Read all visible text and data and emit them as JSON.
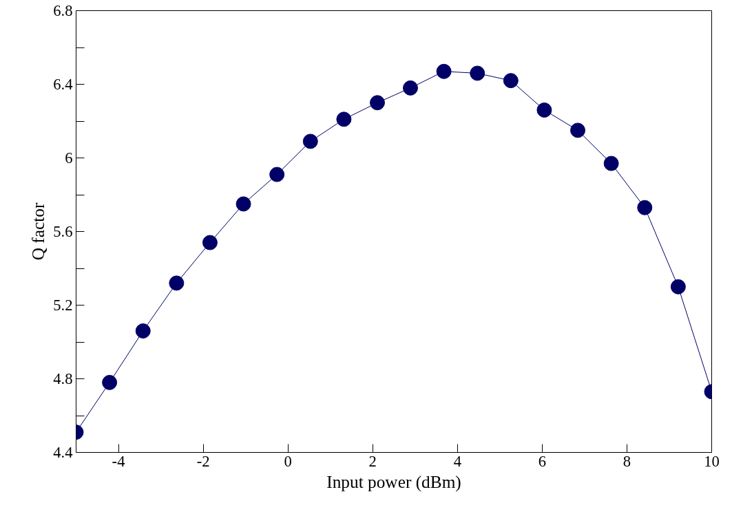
{
  "chart_data": {
    "type": "line",
    "xlabel": "Input power (dBm)",
    "ylabel": "Q factor",
    "x": [
      -5,
      -4.21,
      -3.42,
      -2.63,
      -1.84,
      -1.05,
      -0.26,
      0.53,
      1.32,
      2.11,
      2.89,
      3.68,
      4.47,
      5.26,
      6.05,
      6.84,
      7.63,
      8.42,
      9.21,
      10
    ],
    "series": [
      {
        "color": "#000066",
        "values": [
          4.51,
          4.78,
          5.06,
          5.32,
          5.54,
          5.75,
          5.91,
          6.09,
          6.21,
          6.3,
          6.38,
          6.47,
          6.46,
          6.42,
          6.26,
          6.15,
          5.97,
          5.73,
          5.3,
          4.73
        ]
      }
    ],
    "marker": "circle",
    "line_style": "solid",
    "grid": false,
    "xlim": [
      -5,
      10
    ],
    "xticks": [
      -4,
      -2,
      0,
      2,
      4,
      6,
      8,
      10
    ],
    "ylim": [
      4.4,
      6.8
    ],
    "yticks": [
      4.4,
      {
        "value": 4.6,
        "label": null
      },
      4.8,
      {
        "value": 5.0,
        "label": null
      },
      5.2,
      {
        "value": 5.4,
        "label": null
      },
      5.6,
      {
        "value": 5.8,
        "label": null
      },
      6,
      {
        "value": 6.2,
        "label": null
      },
      6.4,
      {
        "value": 6.6,
        "label": null
      },
      6.8
    ]
  }
}
